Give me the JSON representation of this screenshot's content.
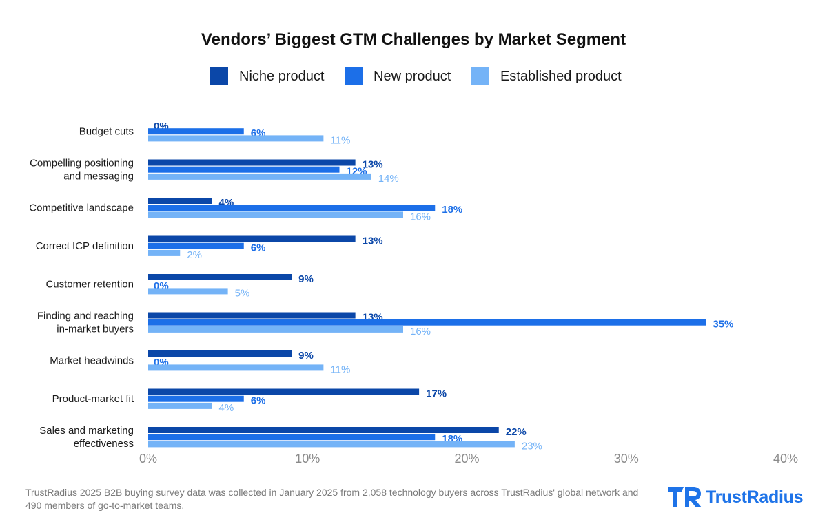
{
  "chart_data": {
    "type": "bar",
    "orientation": "horizontal",
    "title": "Vendors’ Biggest GTM Challenges by Market Segment",
    "categories": [
      "Budget cuts",
      "Compelling positioning\nand messaging",
      "Competitive landscape",
      "Correct ICP definition",
      "Customer retention",
      "Finding and reaching\nin-market buyers",
      "Market headwinds",
      "Product-market fit",
      "Sales and marketing\neffectiveness"
    ],
    "series": [
      {
        "name": "Niche product",
        "color": "#0b47a8",
        "values": [
          0,
          13,
          4,
          13,
          9,
          13,
          9,
          17,
          22
        ]
      },
      {
        "name": "New product",
        "color": "#1c6fe8",
        "values": [
          6,
          12,
          18,
          6,
          0,
          35,
          0,
          6,
          18
        ]
      },
      {
        "name": "Established product",
        "color": "#74b3f7",
        "values": [
          11,
          14,
          16,
          2,
          5,
          16,
          11,
          4,
          23
        ]
      }
    ],
    "xlim": [
      0,
      40
    ],
    "xticks": [
      "0%",
      "10%",
      "20%",
      "30%",
      "40%"
    ],
    "value_suffix": "%",
    "grid": false,
    "legend_position": "top"
  },
  "footnote": "TrustRadius 2025 B2B buying survey data was collected in January 2025 from 2,058 technology buyers across TrustRadius' global network and 490 members of go-to-market teams.",
  "logo": {
    "text": "TrustRadius",
    "color": "#1e73e8"
  }
}
